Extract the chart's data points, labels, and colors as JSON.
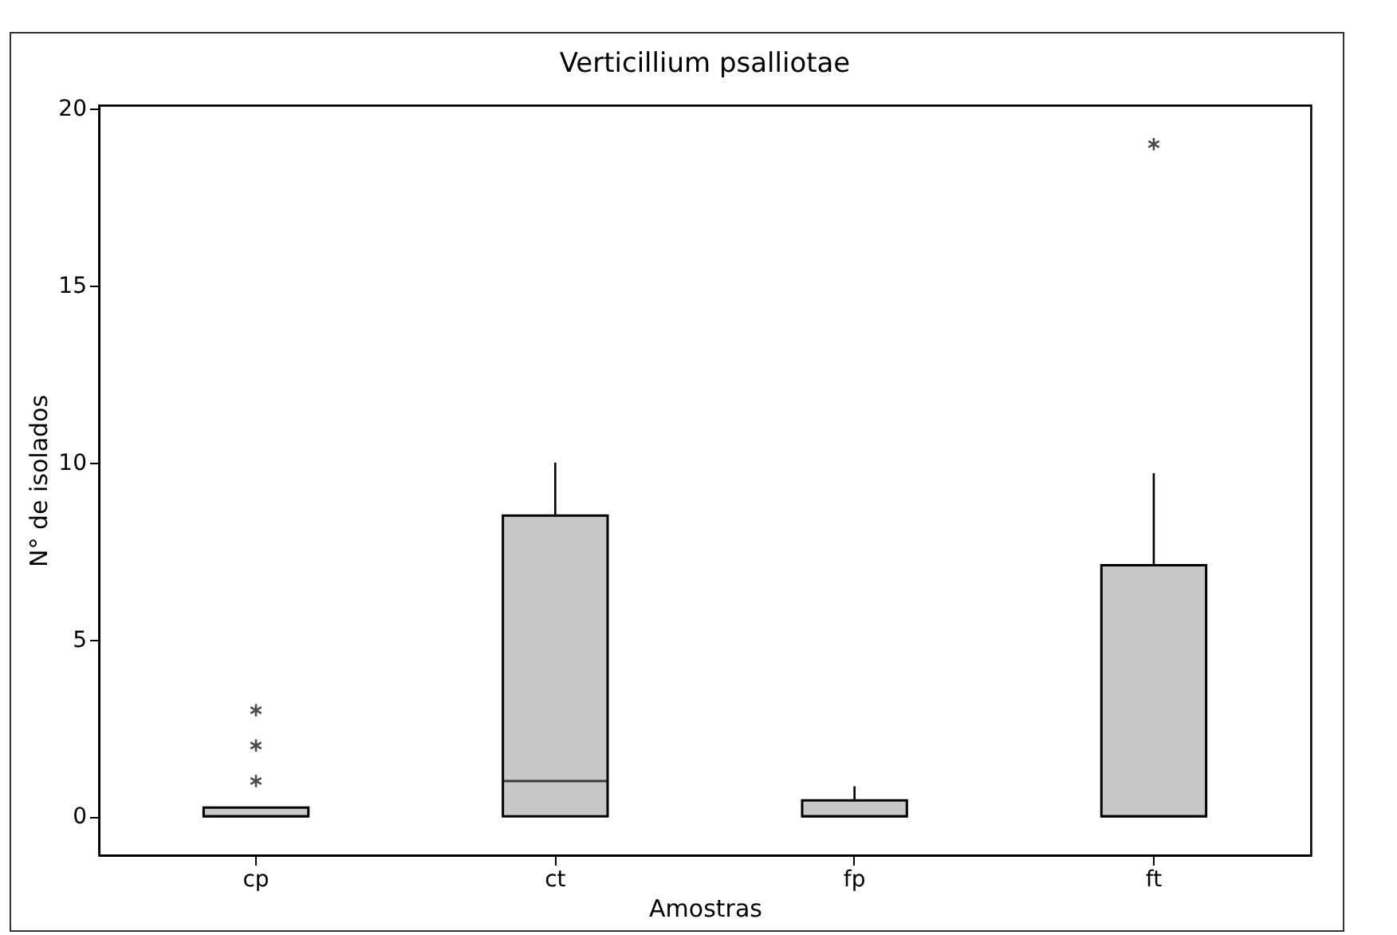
{
  "chart_data": {
    "type": "box",
    "title": "Verticillium psalliotae",
    "xlabel": "Amostras",
    "ylabel": "N° de isolados",
    "categories": [
      "cp",
      "ct",
      "fp",
      "ft"
    ],
    "boxes": [
      {
        "low": 0,
        "q1": 0,
        "median": 0,
        "q3": 0.25,
        "high": 0.25,
        "outliers": [
          1,
          2,
          3
        ]
      },
      {
        "low": 0,
        "q1": 0,
        "median": 1,
        "q3": 8.5,
        "high": 10
      },
      {
        "low": 0,
        "q1": 0,
        "median": 0,
        "q3": 0.45,
        "high": 0.85
      },
      {
        "low": 0,
        "q1": 0,
        "median": 0,
        "q3": 7.1,
        "high": 9.7,
        "outliers": [
          19
        ]
      }
    ],
    "color": "#c8c8c8",
    "ylim": [
      -1.1,
      20.1
    ],
    "yticks": [
      0,
      5,
      10,
      15,
      20
    ],
    "grid": false,
    "marker": "star"
  }
}
